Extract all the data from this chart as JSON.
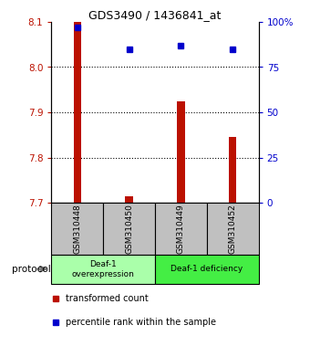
{
  "title": "GDS3490 / 1436841_at",
  "samples": [
    "GSM310448",
    "GSM310450",
    "GSM310449",
    "GSM310452"
  ],
  "red_values": [
    8.1,
    7.715,
    7.925,
    7.845
  ],
  "blue_values": [
    97,
    85,
    87,
    85
  ],
  "ylim": [
    7.7,
    8.1
  ],
  "yticks_left": [
    7.7,
    7.8,
    7.9,
    8.0,
    8.1
  ],
  "yticks_right": [
    0,
    25,
    50,
    75,
    100
  ],
  "ytick_labels_right": [
    "0",
    "25",
    "50",
    "75",
    "100%"
  ],
  "gridlines": [
    7.8,
    7.9,
    8.0
  ],
  "red_color": "#BB1100",
  "blue_color": "#0000CC",
  "bar_bottom": 7.7,
  "bar_width": 0.15,
  "group_bg_color": "#C0C0C0",
  "group0_color": "#AAFFAA",
  "group1_color": "#44EE44",
  "group0_label": "Deaf-1\noverexpression",
  "group1_label": "Deaf-1 deficiency",
  "legend_red_label": "transformed count",
  "legend_blue_label": "percentile rank within the sample",
  "protocol_label": "protocol"
}
